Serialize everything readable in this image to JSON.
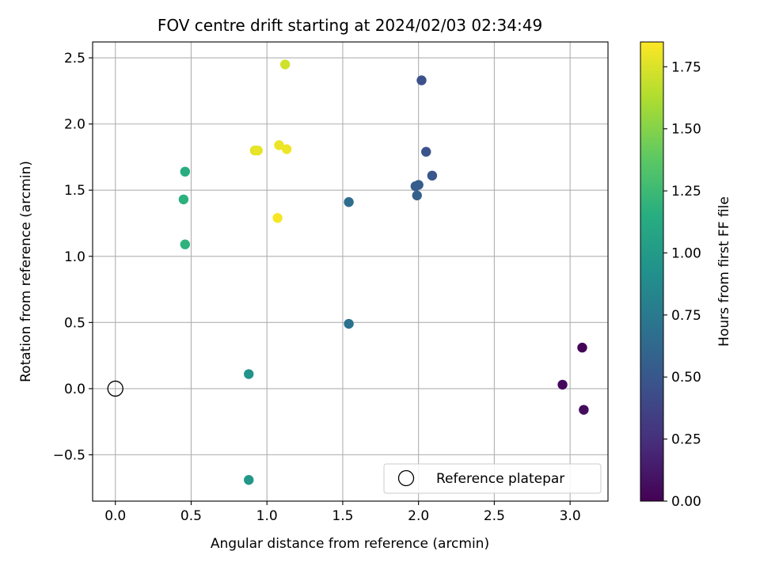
{
  "chart_data": {
    "type": "scatter",
    "title": "FOV centre drift starting at 2024/02/03 02:34:49",
    "xlabel": "Angular distance from reference (arcmin)",
    "ylabel": "Rotation from reference (arcmin)",
    "xlim": [
      -0.15,
      3.25
    ],
    "ylim": [
      -0.85,
      2.62
    ],
    "x_ticks": [
      0.0,
      0.5,
      1.0,
      1.5,
      2.0,
      2.5,
      3.0
    ],
    "x_tick_labels": [
      "0.0",
      "0.5",
      "1.0",
      "1.5",
      "2.0",
      "2.5",
      "3.0"
    ],
    "y_ticks": [
      -0.5,
      0.0,
      0.5,
      1.0,
      1.5,
      2.0,
      2.5
    ],
    "y_tick_labels": [
      "−0.5",
      "0.0",
      "0.5",
      "1.0",
      "1.5",
      "2.0",
      "2.5"
    ],
    "grid": true,
    "colormap": "viridis",
    "colorbar": {
      "label": "Hours from first FF file",
      "range": [
        0.0,
        1.85
      ],
      "ticks": [
        0.0,
        0.25,
        0.5,
        0.75,
        1.0,
        1.25,
        1.5,
        1.75
      ],
      "tick_labels": [
        "0.00",
        "0.25",
        "0.50",
        "0.75",
        "1.00",
        "1.25",
        "1.50",
        "1.75"
      ]
    },
    "points": [
      {
        "x": 3.08,
        "y": 0.31,
        "c": 0.02
      },
      {
        "x": 2.95,
        "y": 0.03,
        "c": 0.04
      },
      {
        "x": 3.09,
        "y": -0.16,
        "c": 0.06
      },
      {
        "x": 2.02,
        "y": 2.33,
        "c": 0.45
      },
      {
        "x": 2.05,
        "y": 1.79,
        "c": 0.47
      },
      {
        "x": 2.09,
        "y": 1.61,
        "c": 0.5
      },
      {
        "x": 1.98,
        "y": 1.53,
        "c": 0.53
      },
      {
        "x": 2.0,
        "y": 1.54,
        "c": 0.55
      },
      {
        "x": 1.99,
        "y": 1.46,
        "c": 0.57
      },
      {
        "x": 1.54,
        "y": 1.41,
        "c": 0.66
      },
      {
        "x": 1.54,
        "y": 0.49,
        "c": 0.69
      },
      {
        "x": 0.88,
        "y": 0.11,
        "c": 0.95
      },
      {
        "x": 0.88,
        "y": -0.69,
        "c": 0.97
      },
      {
        "x": 0.46,
        "y": 1.64,
        "c": 1.15
      },
      {
        "x": 0.45,
        "y": 1.43,
        "c": 1.17
      },
      {
        "x": 0.46,
        "y": 1.09,
        "c": 1.19
      },
      {
        "x": 1.12,
        "y": 2.45,
        "c": 1.72
      },
      {
        "x": 0.92,
        "y": 1.8,
        "c": 1.77
      },
      {
        "x": 0.94,
        "y": 1.8,
        "c": 1.79
      },
      {
        "x": 1.08,
        "y": 1.84,
        "c": 1.8
      },
      {
        "x": 1.13,
        "y": 1.81,
        "c": 1.81
      },
      {
        "x": 1.07,
        "y": 1.29,
        "c": 1.83
      }
    ],
    "reference_point": {
      "x": 0.0,
      "y": 0.0,
      "label": "Reference platepar"
    },
    "legend": {
      "placement": "lower-right",
      "entries": [
        "Reference platepar"
      ]
    }
  }
}
